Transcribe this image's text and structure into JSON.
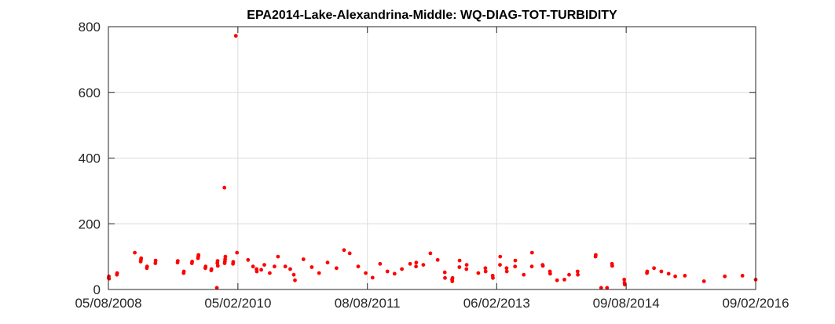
{
  "chart_data": {
    "type": "scatter",
    "title": "EPA2014-Lake-Alexandrina-Middle: WQ-DIAG-TOT-TURBIDITY",
    "xlabel": "",
    "ylabel": "",
    "x_axis_kind": "date",
    "xlim": [
      "2008-08-05",
      "2016-02-09"
    ],
    "ylim": [
      0,
      800
    ],
    "x_ticks": [
      "2008-08-05",
      "2010-02-05",
      "2011-08-08",
      "2013-02-06",
      "2014-08-09",
      "2016-02-09"
    ],
    "x_tick_labels": [
      "05/08/2008",
      "05/02/2010",
      "08/08/2011",
      "06/02/2013",
      "09/08/2014",
      "09/02/2016"
    ],
    "y_ticks": [
      0,
      200,
      400,
      600,
      800
    ],
    "y_tick_labels": [
      "0",
      "200",
      "400",
      "600",
      "800"
    ],
    "grid": true,
    "marker_color": "#ff0000",
    "points": [
      [
        "2008-08-06",
        35
      ],
      [
        "2008-08-07",
        40
      ],
      [
        "2008-08-08",
        33
      ],
      [
        "2008-09-10",
        45
      ],
      [
        "2008-09-11",
        50
      ],
      [
        "2008-11-25",
        112
      ],
      [
        "2008-12-20",
        85
      ],
      [
        "2008-12-21",
        90
      ],
      [
        "2008-12-22",
        95
      ],
      [
        "2009-01-15",
        65
      ],
      [
        "2009-01-16",
        70
      ],
      [
        "2009-02-20",
        80
      ],
      [
        "2009-02-21",
        88
      ],
      [
        "2009-05-25",
        82
      ],
      [
        "2009-05-26",
        87
      ],
      [
        "2009-06-20",
        50
      ],
      [
        "2009-06-21",
        55
      ],
      [
        "2009-07-25",
        80
      ],
      [
        "2009-07-26",
        85
      ],
      [
        "2009-08-20",
        95
      ],
      [
        "2009-08-21",
        100
      ],
      [
        "2009-08-22",
        105
      ],
      [
        "2009-09-20",
        65
      ],
      [
        "2009-09-21",
        70
      ],
      [
        "2009-10-15",
        58
      ],
      [
        "2009-10-16",
        62
      ],
      [
        "2009-11-10",
        80
      ],
      [
        "2009-11-11",
        87
      ],
      [
        "2009-11-12",
        72
      ],
      [
        "2009-11-08",
        5
      ],
      [
        "2009-12-10",
        310
      ],
      [
        "2009-12-12",
        85
      ],
      [
        "2009-12-13",
        92
      ],
      [
        "2009-12-14",
        100
      ],
      [
        "2009-12-11",
        80
      ],
      [
        "2010-01-15",
        78
      ],
      [
        "2010-01-16",
        84
      ],
      [
        "2010-01-27",
        772
      ],
      [
        "2010-02-01",
        112
      ],
      [
        "2010-03-20",
        90
      ],
      [
        "2010-04-10",
        70
      ],
      [
        "2010-04-25",
        62
      ],
      [
        "2010-04-26",
        55
      ],
      [
        "2010-05-15",
        60
      ],
      [
        "2010-05-28",
        75
      ],
      [
        "2010-06-20",
        50
      ],
      [
        "2010-07-10",
        70
      ],
      [
        "2010-07-25",
        100
      ],
      [
        "2010-08-25",
        70
      ],
      [
        "2010-09-15",
        62
      ],
      [
        "2010-09-30",
        45
      ],
      [
        "2010-10-05",
        28
      ],
      [
        "2010-11-10",
        92
      ],
      [
        "2010-12-15",
        68
      ],
      [
        "2011-01-15",
        50
      ],
      [
        "2011-02-20",
        82
      ],
      [
        "2011-03-30",
        65
      ],
      [
        "2011-05-01",
        120
      ],
      [
        "2011-05-25",
        110
      ],
      [
        "2011-06-30",
        70
      ],
      [
        "2011-08-01",
        50
      ],
      [
        "2011-08-30",
        36
      ],
      [
        "2011-10-01",
        78
      ],
      [
        "2011-11-01",
        55
      ],
      [
        "2011-12-01",
        48
      ],
      [
        "2012-01-01",
        62
      ],
      [
        "2012-02-05",
        78
      ],
      [
        "2012-03-01",
        70
      ],
      [
        "2012-03-02",
        82
      ],
      [
        "2012-04-01",
        75
      ],
      [
        "2012-05-01",
        110
      ],
      [
        "2012-06-01",
        90
      ],
      [
        "2012-07-01",
        52
      ],
      [
        "2012-07-02",
        35
      ],
      [
        "2012-08-01",
        30
      ],
      [
        "2012-08-02",
        25
      ],
      [
        "2012-08-03",
        35
      ],
      [
        "2012-09-01",
        68
      ],
      [
        "2012-09-02",
        88
      ],
      [
        "2012-10-01",
        62
      ],
      [
        "2012-10-02",
        75
      ],
      [
        "2012-11-20",
        50
      ],
      [
        "2012-12-20",
        65
      ],
      [
        "2012-12-21",
        55
      ],
      [
        "2013-01-20",
        42
      ],
      [
        "2013-01-21",
        35
      ],
      [
        "2013-02-20",
        75
      ],
      [
        "2013-02-21",
        100
      ],
      [
        "2013-03-20",
        65
      ],
      [
        "2013-03-21",
        55
      ],
      [
        "2013-04-25",
        70
      ],
      [
        "2013-04-26",
        88
      ],
      [
        "2013-06-01",
        45
      ],
      [
        "2013-07-05",
        70
      ],
      [
        "2013-07-06",
        112
      ],
      [
        "2013-08-20",
        75
      ],
      [
        "2013-08-21",
        72
      ],
      [
        "2013-09-20",
        55
      ],
      [
        "2013-09-21",
        48
      ],
      [
        "2013-10-20",
        28
      ],
      [
        "2013-11-20",
        30
      ],
      [
        "2013-12-10",
        45
      ],
      [
        "2014-01-15",
        55
      ],
      [
        "2014-01-16",
        45
      ],
      [
        "2014-04-01",
        100
      ],
      [
        "2014-04-02",
        105
      ],
      [
        "2014-04-25",
        5
      ],
      [
        "2014-05-20",
        5
      ],
      [
        "2014-06-10",
        78
      ],
      [
        "2014-06-11",
        72
      ],
      [
        "2014-08-01",
        30
      ],
      [
        "2014-08-02",
        20
      ],
      [
        "2014-08-03",
        15
      ],
      [
        "2014-11-05",
        50
      ],
      [
        "2014-11-06",
        55
      ],
      [
        "2014-12-05",
        65
      ],
      [
        "2015-01-05",
        55
      ],
      [
        "2015-02-05",
        48
      ],
      [
        "2015-03-05",
        40
      ],
      [
        "2015-04-15",
        42
      ],
      [
        "2015-07-05",
        25
      ],
      [
        "2015-10-01",
        40
      ],
      [
        "2015-12-15",
        42
      ],
      [
        "2016-02-09",
        30
      ]
    ]
  }
}
